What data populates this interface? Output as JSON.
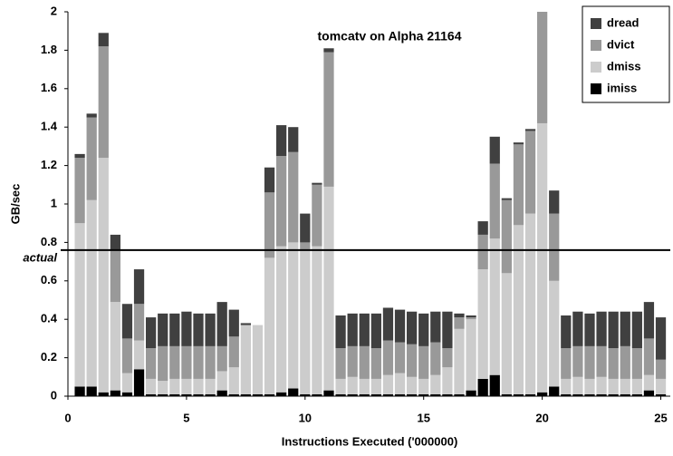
{
  "chart_data": {
    "type": "stacked_bar",
    "title": "tomcatv on Alpha 21164",
    "x_label": "Instructions Executed ('000000)",
    "y_label": "GB/sec",
    "x": [
      0.5,
      1,
      1.5,
      2,
      2.5,
      3,
      3.5,
      4,
      4.5,
      5,
      5.5,
      6,
      6.5,
      7,
      7.5,
      8,
      8.5,
      9,
      9.5,
      10,
      10.5,
      11,
      11.5,
      12,
      12.5,
      13,
      13.5,
      14,
      14.5,
      15,
      15.5,
      16,
      16.5,
      17,
      17.5,
      18,
      18.5,
      19,
      19.5,
      20,
      20.5,
      21,
      21.5,
      22,
      22.5,
      23,
      23.5,
      24,
      24.5,
      25
    ],
    "series": [
      {
        "name": "imiss",
        "color": "#000000",
        "values": [
          0.05,
          0.05,
          0.02,
          0.03,
          0.02,
          0.14,
          0.01,
          0.01,
          0.01,
          0.01,
          0.01,
          0.01,
          0.03,
          0.01,
          0.01,
          0.01,
          0.01,
          0.02,
          0.04,
          0.01,
          0.01,
          0.03,
          0.01,
          0.01,
          0.01,
          0.01,
          0.01,
          0.01,
          0.01,
          0.01,
          0.01,
          0.01,
          0.01,
          0.03,
          0.09,
          0.11,
          0.01,
          0.01,
          0.01,
          0.02,
          0.05,
          0.01,
          0.01,
          0.01,
          0.01,
          0.01,
          0.01,
          0.01,
          0.03,
          0.01
        ]
      },
      {
        "name": "dmiss",
        "color": "#cccccc",
        "values": [
          0.85,
          0.97,
          1.22,
          0.46,
          0.1,
          0.15,
          0.08,
          0.07,
          0.08,
          0.08,
          0.08,
          0.08,
          0.1,
          0.14,
          0.36,
          0.36,
          0.71,
          0.76,
          0.76,
          0.75,
          0.77,
          1.06,
          0.08,
          0.09,
          0.08,
          0.08,
          0.1,
          0.11,
          0.09,
          0.08,
          0.1,
          0.14,
          0.34,
          0.37,
          0.57,
          0.71,
          0.63,
          0.88,
          0.94,
          1.4,
          0.55,
          0.08,
          0.09,
          0.08,
          0.09,
          0.08,
          0.08,
          0.08,
          0.08,
          0.08
        ]
      },
      {
        "name": "dvict",
        "color": "#999999",
        "values": [
          0.34,
          0.43,
          0.58,
          0.27,
          0.18,
          0.19,
          0.16,
          0.18,
          0.17,
          0.17,
          0.17,
          0.17,
          0.13,
          0.16,
          0,
          0,
          0.34,
          0.47,
          0.47,
          0.04,
          0.32,
          0.7,
          0.16,
          0.16,
          0.17,
          0.16,
          0.18,
          0.16,
          0.17,
          0.17,
          0.17,
          0.1,
          0.06,
          0.01,
          0.18,
          0.39,
          0.38,
          0.42,
          0.43,
          0.58,
          0.35,
          0.16,
          0.16,
          0.17,
          0.16,
          0.16,
          0.17,
          0.16,
          0.19,
          0.1
        ]
      },
      {
        "name": "dread",
        "color": "#404040",
        "values": [
          0.02,
          0.02,
          0.07,
          0.08,
          0.18,
          0.18,
          0.16,
          0.17,
          0.17,
          0.18,
          0.17,
          0.17,
          0.23,
          0.14,
          0.01,
          0,
          0.13,
          0.16,
          0.13,
          0.15,
          0.01,
          0.02,
          0.17,
          0.17,
          0.17,
          0.18,
          0.17,
          0.17,
          0.17,
          0.17,
          0.16,
          0.19,
          0.02,
          0.01,
          0.07,
          0.14,
          0.01,
          0.01,
          0.01,
          0.03,
          0.12,
          0.17,
          0.18,
          0.17,
          0.18,
          0.19,
          0.18,
          0.19,
          0.19,
          0.22
        ]
      }
    ],
    "reference_line": {
      "value": 0.76,
      "label": "actual"
    },
    "xlim": [
      0,
      25.4
    ],
    "xticks": [
      0,
      5,
      10,
      15,
      20,
      25
    ],
    "ylim": [
      0,
      2
    ],
    "yticks": [
      0,
      0.2,
      0.4,
      0.6,
      0.8,
      1,
      1.2,
      1.4,
      1.6,
      1.8,
      2
    ],
    "legend": "top-right"
  }
}
